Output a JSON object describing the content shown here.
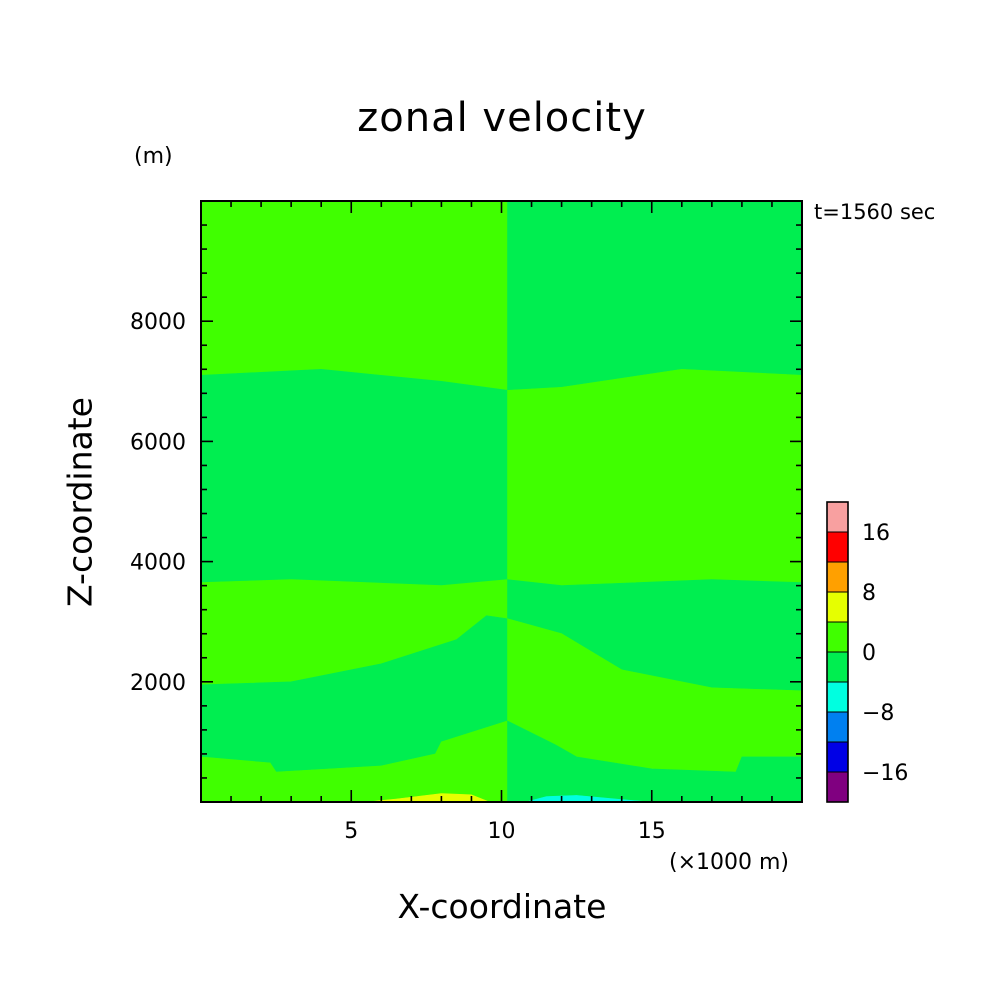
{
  "chart_data": {
    "type": "heatmap",
    "title": "zonal velocity",
    "ylabel": "Z-coordinate",
    "yunit": "(m)",
    "xlabel": "X-coordinate",
    "xunit": "(×1000 m)",
    "time_label": "t=1560 sec",
    "xlim": [
      0,
      20
    ],
    "ylim": [
      0,
      10000
    ],
    "xticks": [
      5,
      10,
      15
    ],
    "yticks": [
      2000,
      4000,
      6000,
      8000
    ],
    "colorbar": {
      "levels": [
        -20,
        -16,
        -12,
        -8,
        -4,
        0,
        4,
        8,
        12,
        16,
        20
      ],
      "colors": [
        "#800080",
        "#0000e6",
        "#0080f0",
        "#00ffe0",
        "#00ee50",
        "#40ff00",
        "#e6ff00",
        "#ffa000",
        "#ff0000",
        "#f8a0a0"
      ],
      "tick_values": [
        -16,
        -8,
        0,
        8,
        16
      ],
      "tick_labels": [
        "−16",
        "−8",
        "0",
        "8",
        "16"
      ]
    },
    "regions": [
      {
        "level": "0 to 4",
        "color": "#40ff00",
        "boundary": [
          [
            0,
            10000
          ],
          [
            10.2,
            10000
          ],
          [
            10.2,
            6850
          ],
          [
            8,
            7000
          ],
          [
            4,
            7200
          ],
          [
            0,
            7100
          ]
        ]
      },
      {
        "level": "-4 to 0",
        "color": "#00ee50",
        "boundary": [
          [
            10.2,
            10000
          ],
          [
            20,
            10000
          ],
          [
            20,
            7100
          ],
          [
            16,
            7200
          ],
          [
            12,
            6900
          ],
          [
            10.2,
            6850
          ]
        ]
      },
      {
        "level": "-4 to 0",
        "color": "#00ee50",
        "boundary": [
          [
            0,
            7100
          ],
          [
            4,
            7200
          ],
          [
            8,
            7000
          ],
          [
            10.2,
            6850
          ],
          [
            10.2,
            3700
          ],
          [
            8,
            3600
          ],
          [
            3,
            3700
          ],
          [
            0,
            3650
          ]
        ]
      },
      {
        "level": "0 to 4",
        "color": "#40ff00",
        "boundary": [
          [
            10.2,
            6850
          ],
          [
            12,
            6900
          ],
          [
            16,
            7200
          ],
          [
            20,
            7100
          ],
          [
            20,
            3650
          ],
          [
            17,
            3700
          ],
          [
            12,
            3600
          ],
          [
            10.2,
            3700
          ]
        ]
      },
      {
        "level": "0 to 4",
        "color": "#40ff00",
        "boundary": [
          [
            0,
            3650
          ],
          [
            3,
            3700
          ],
          [
            8,
            3600
          ],
          [
            10.2,
            3700
          ],
          [
            10.2,
            3050
          ],
          [
            9.5,
            3100
          ],
          [
            8.5,
            2700
          ],
          [
            6,
            2300
          ],
          [
            3,
            2000
          ],
          [
            0,
            1950
          ]
        ]
      },
      {
        "level": "-4 to 0",
        "color": "#00ee50",
        "boundary": [
          [
            10.2,
            3700
          ],
          [
            12,
            3600
          ],
          [
            17,
            3700
          ],
          [
            20,
            3650
          ],
          [
            20,
            1850
          ],
          [
            17,
            1900
          ],
          [
            14,
            2200
          ],
          [
            12,
            2800
          ],
          [
            10.2,
            3050
          ]
        ]
      },
      {
        "level": "-4 to 0",
        "color": "#00ee50",
        "boundary": [
          [
            0,
            1950
          ],
          [
            3,
            2000
          ],
          [
            6,
            2300
          ],
          [
            8.5,
            2700
          ],
          [
            9.5,
            3100
          ],
          [
            10.2,
            3050
          ],
          [
            10.2,
            1350
          ],
          [
            8,
            1000
          ],
          [
            7.8,
            800
          ],
          [
            6,
            600
          ],
          [
            2.5,
            500
          ],
          [
            2.3,
            650
          ],
          [
            0,
            750
          ]
        ]
      },
      {
        "level": "0 to 4",
        "color": "#40ff00",
        "boundary": [
          [
            10.2,
            3050
          ],
          [
            12,
            2800
          ],
          [
            14,
            2200
          ],
          [
            17,
            1900
          ],
          [
            20,
            1850
          ],
          [
            20,
            750
          ],
          [
            18,
            750
          ],
          [
            17.8,
            500
          ],
          [
            15,
            550
          ],
          [
            12.5,
            750
          ],
          [
            11.8,
            950
          ],
          [
            10.2,
            1350
          ]
        ]
      },
      {
        "level": "0 to 4",
        "color": "#40ff00",
        "boundary": [
          [
            0,
            750
          ],
          [
            2.3,
            650
          ],
          [
            2.5,
            500
          ],
          [
            6,
            600
          ],
          [
            7.8,
            800
          ],
          [
            8,
            1000
          ],
          [
            10.2,
            1350
          ],
          [
            10.2,
            0
          ],
          [
            0,
            0
          ]
        ]
      },
      {
        "level": "-4 to 0",
        "color": "#00ee50",
        "boundary": [
          [
            10.2,
            1350
          ],
          [
            11.8,
            950
          ],
          [
            12.5,
            750
          ],
          [
            15,
            550
          ],
          [
            17.8,
            500
          ],
          [
            18,
            750
          ],
          [
            20,
            750
          ],
          [
            20,
            0
          ],
          [
            10.2,
            0
          ]
        ]
      },
      {
        "level": "4 to 8",
        "color": "#e6ff00",
        "boundary": [
          [
            5.5,
            0
          ],
          [
            6.5,
            50
          ],
          [
            8,
            140
          ],
          [
            9,
            120
          ],
          [
            9.6,
            0
          ]
        ]
      },
      {
        "level": "-8 to -4",
        "color": "#00ffe0",
        "boundary": [
          [
            10.8,
            0
          ],
          [
            11.5,
            90
          ],
          [
            12.5,
            110
          ],
          [
            14,
            40
          ],
          [
            15,
            0
          ]
        ]
      }
    ]
  }
}
